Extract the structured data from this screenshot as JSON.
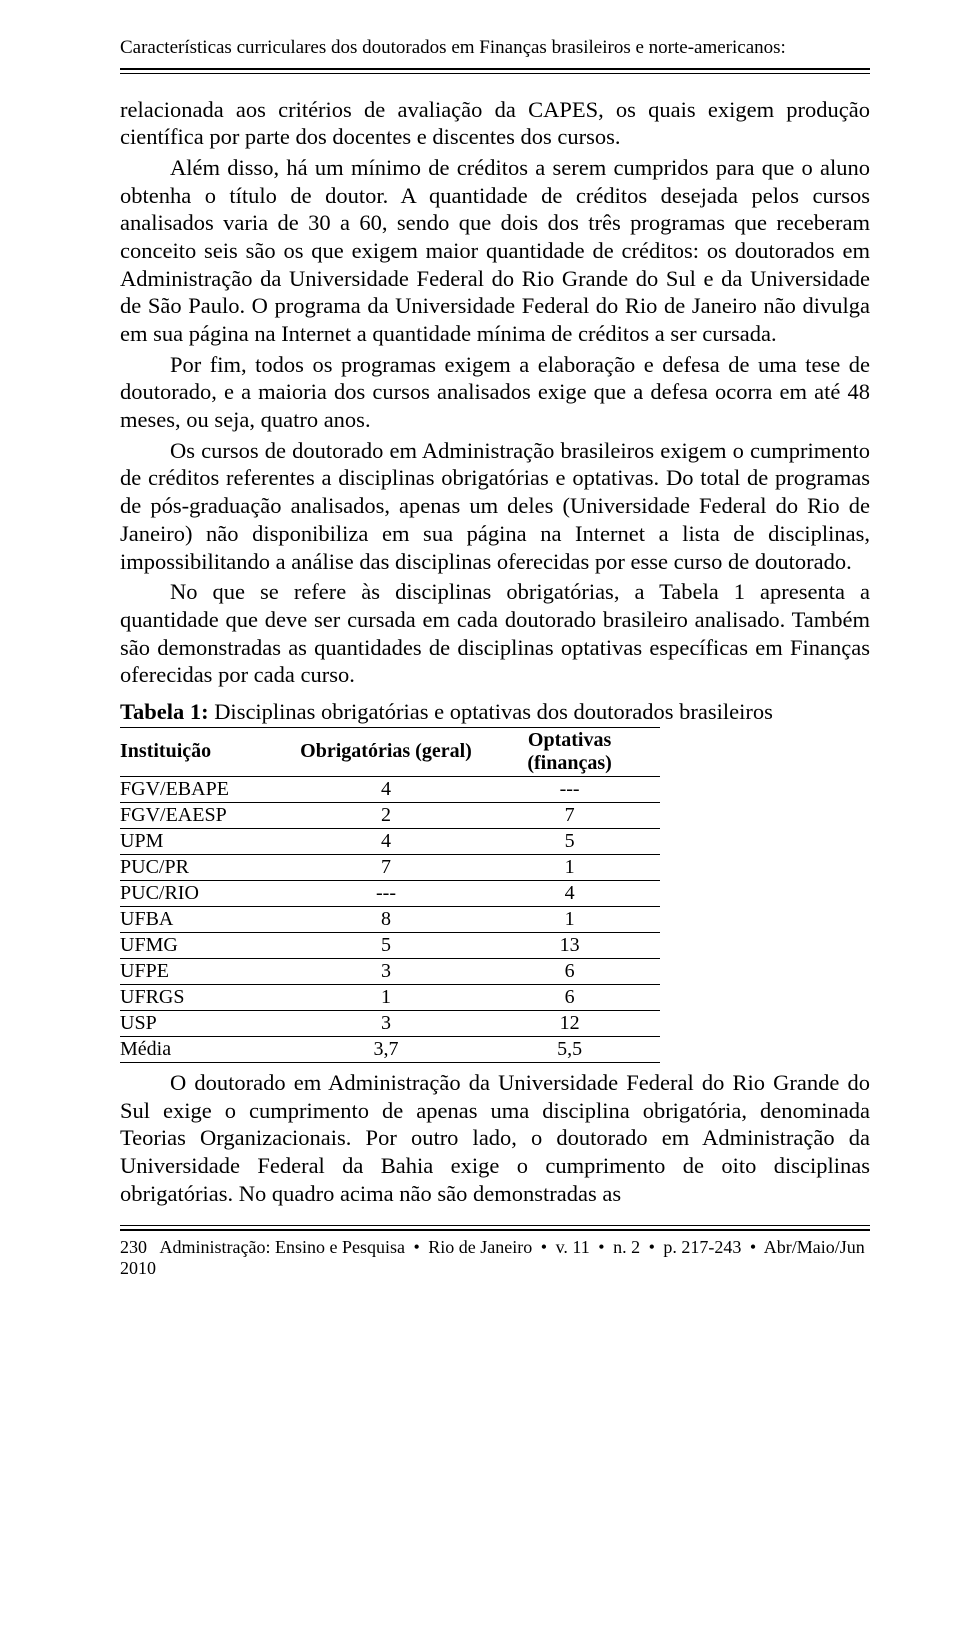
{
  "header": {
    "running_title": "Características curriculares dos doutorados em Finanças brasileiros e norte-americanos:"
  },
  "paragraphs": {
    "p1": "relacionada aos critérios de avaliação da CAPES, os quais exigem produção científica por parte dos docentes e discentes dos cursos.",
    "p2": "Além disso, há um mínimo de créditos a serem cumpridos para que o aluno obtenha o título de doutor. A quantidade de créditos desejada pelos cursos analisados varia de 30 a 60, sendo que dois dos três programas que receberam conceito seis são os que exigem maior quantidade de créditos: os doutorados em Administração da Universidade Federal do Rio Grande do Sul e da Universidade de São Paulo. O programa da Universidade Federal do Rio de Janeiro não divulga em sua página na Internet a quantidade mínima de créditos a ser cursada.",
    "p3": "Por fim, todos os programas exigem a elaboração e defesa de uma tese de doutorado, e a maioria dos cursos analisados exige que a defesa ocorra em até 48 meses, ou seja, quatro anos.",
    "p4": "Os cursos de doutorado em Administração brasileiros exigem o cumprimento de créditos referentes a disciplinas obrigatórias e optativas. Do total de programas de pós-graduação analisados, apenas um deles (Universidade Federal do Rio de Janeiro) não disponibiliza em sua página na Internet a lista de disciplinas, impossibilitando a análise das disciplinas oferecidas por esse curso de doutorado.",
    "p5": "No que se refere às disciplinas obrigatórias, a Tabela 1 apresenta a quantidade que deve ser cursada em cada doutorado brasileiro analisado. Também são demonstradas as quantidades de disciplinas optativas específicas em Finanças oferecidas por cada curso.",
    "p6": "O doutorado em Administração da Universidade Federal do Rio Grande do Sul exige o cumprimento de apenas uma disciplina obrigatória, denominada Teorias Organizacionais. Por outro lado, o doutorado em Administração da Universidade Federal da Bahia exige o cumprimento de oito disciplinas obrigatórias. No quadro acima não são demonstradas as"
  },
  "table": {
    "title_bold": "Tabela 1:",
    "title_rest": " Disciplinas obrigatórias e optativas dos doutorados brasileiros",
    "columns": [
      "Instituição",
      "Obrigatórias (geral)",
      "Optativas (finanças)"
    ],
    "rows": [
      [
        "FGV/EBAPE",
        "4",
        "---"
      ],
      [
        "FGV/EAESP",
        "2",
        "7"
      ],
      [
        "UPM",
        "4",
        "5"
      ],
      [
        "PUC/PR",
        "7",
        "1"
      ],
      [
        "PUC/RIO",
        "---",
        "4"
      ],
      [
        "UFBA",
        "8",
        "1"
      ],
      [
        "UFMG",
        "5",
        "13"
      ],
      [
        "UFPE",
        "3",
        "6"
      ],
      [
        "UFRGS",
        "1",
        "6"
      ],
      [
        "USP",
        "3",
        "12"
      ],
      [
        "Média",
        "3,7",
        "5,5"
      ]
    ],
    "col_widths": [
      "32%",
      "36%",
      "32%"
    ],
    "font_size_pt": 15,
    "border_color": "#000000"
  },
  "footer": {
    "page_number": "230",
    "journal": "Administração: Ensino e Pesquisa",
    "city": "Rio de Janeiro",
    "volume": "v. 11",
    "issue": "n. 2",
    "pages": "p. 217-243",
    "date": "Abr/Maio/Jun 2010",
    "bullet": "•"
  },
  "colors": {
    "text": "#000000",
    "background": "#ffffff",
    "rule": "#000000"
  }
}
